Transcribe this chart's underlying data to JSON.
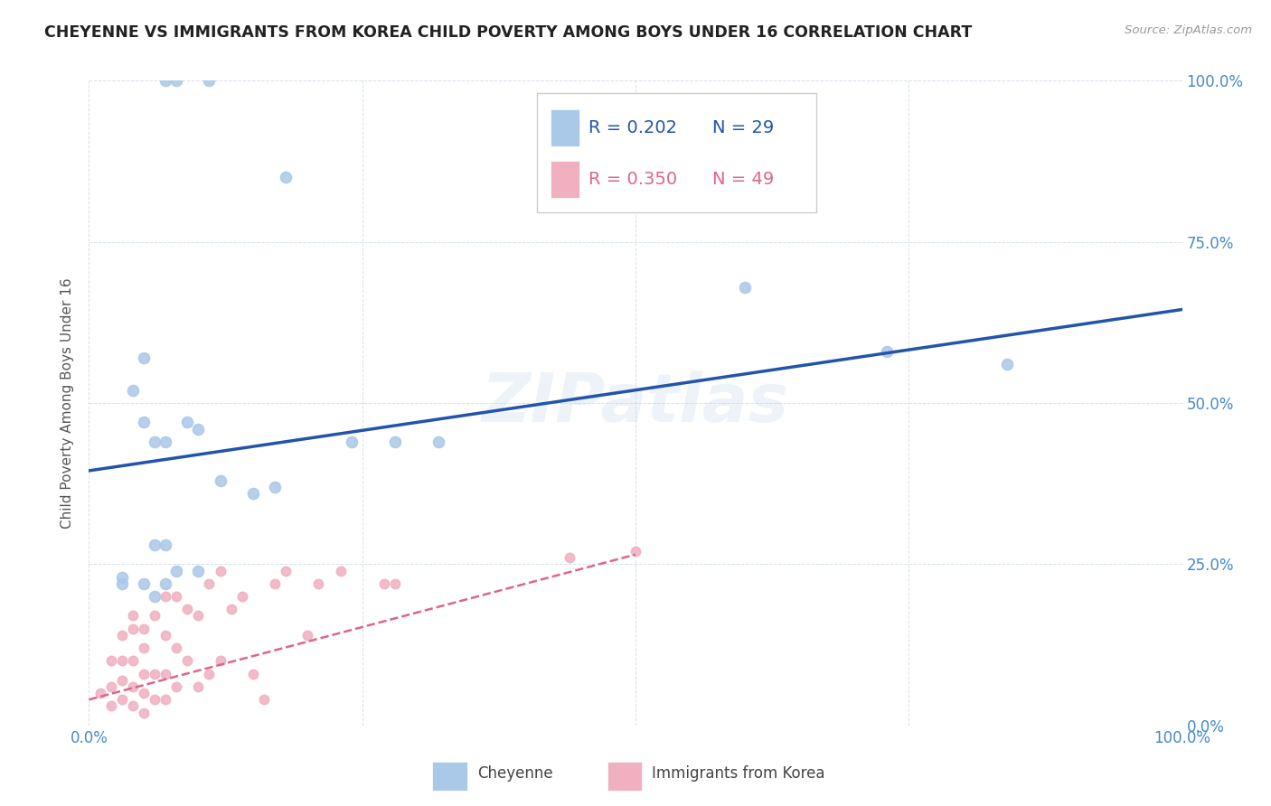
{
  "title": "CHEYENNE VS IMMIGRANTS FROM KOREA CHILD POVERTY AMONG BOYS UNDER 16 CORRELATION CHART",
  "source": "Source: ZipAtlas.com",
  "ylabel": "Child Poverty Among Boys Under 16",
  "background_color": "#ffffff",
  "title_color": "#222222",
  "title_fontsize": 12.5,
  "watermark": "ZIPatlas",
  "cheyenne_color": "#aac8e8",
  "korea_color": "#f0b0c0",
  "cheyenne_line_color": "#2255aa",
  "korea_line_color": "#dd6688",
  "right_axis_color": "#4488cc",
  "legend_R_cheyenne": "R = 0.202",
  "legend_N_cheyenne": "N = 29",
  "legend_R_korea": "R = 0.350",
  "legend_N_korea": "N = 49",
  "xlim": [
    0,
    1.0
  ],
  "ylim": [
    0,
    1.0
  ],
  "xticks": [
    0.0,
    0.25,
    0.5,
    0.75,
    1.0
  ],
  "yticks": [
    0.0,
    0.25,
    0.5,
    0.75,
    1.0
  ],
  "xticklabels": [
    "0.0%",
    "",
    "",
    "",
    "100.0%"
  ],
  "yticklabels_right": [
    "0.0%",
    "25.0%",
    "50.0%",
    "75.0%",
    "100.0%"
  ],
  "cheyenne_x": [
    0.07,
    0.08,
    0.11,
    0.05,
    0.04,
    0.05,
    0.06,
    0.07,
    0.09,
    0.1,
    0.12,
    0.15,
    0.17,
    0.24,
    0.28,
    0.32,
    0.6,
    0.73,
    0.84,
    0.05,
    0.06,
    0.07,
    0.08,
    0.1,
    0.06,
    0.07,
    0.03,
    0.03,
    0.18
  ],
  "cheyenne_y": [
    1.0,
    1.0,
    1.0,
    0.57,
    0.52,
    0.47,
    0.44,
    0.44,
    0.47,
    0.46,
    0.38,
    0.36,
    0.37,
    0.44,
    0.44,
    0.44,
    0.68,
    0.58,
    0.56,
    0.22,
    0.28,
    0.28,
    0.24,
    0.24,
    0.2,
    0.22,
    0.22,
    0.23,
    0.85
  ],
  "korea_x": [
    0.01,
    0.02,
    0.02,
    0.02,
    0.03,
    0.03,
    0.03,
    0.03,
    0.04,
    0.04,
    0.04,
    0.04,
    0.04,
    0.05,
    0.05,
    0.05,
    0.05,
    0.05,
    0.06,
    0.06,
    0.06,
    0.07,
    0.07,
    0.07,
    0.07,
    0.08,
    0.08,
    0.08,
    0.09,
    0.09,
    0.1,
    0.1,
    0.11,
    0.11,
    0.12,
    0.12,
    0.13,
    0.14,
    0.15,
    0.16,
    0.17,
    0.18,
    0.2,
    0.21,
    0.23,
    0.27,
    0.28,
    0.44,
    0.5
  ],
  "korea_y": [
    0.05,
    0.03,
    0.06,
    0.1,
    0.04,
    0.07,
    0.1,
    0.14,
    0.03,
    0.06,
    0.1,
    0.15,
    0.17,
    0.02,
    0.05,
    0.08,
    0.12,
    0.15,
    0.04,
    0.08,
    0.17,
    0.04,
    0.08,
    0.14,
    0.2,
    0.06,
    0.12,
    0.2,
    0.1,
    0.18,
    0.06,
    0.17,
    0.08,
    0.22,
    0.1,
    0.24,
    0.18,
    0.2,
    0.08,
    0.04,
    0.22,
    0.24,
    0.14,
    0.22,
    0.24,
    0.22,
    0.22,
    0.26,
    0.27
  ],
  "cheyenne_line_x0": 0.0,
  "cheyenne_line_y0": 0.395,
  "cheyenne_line_x1": 1.0,
  "cheyenne_line_y1": 0.645,
  "korea_line_x0": 0.0,
  "korea_line_y0": 0.04,
  "korea_line_x1": 0.5,
  "korea_line_y1": 0.265
}
